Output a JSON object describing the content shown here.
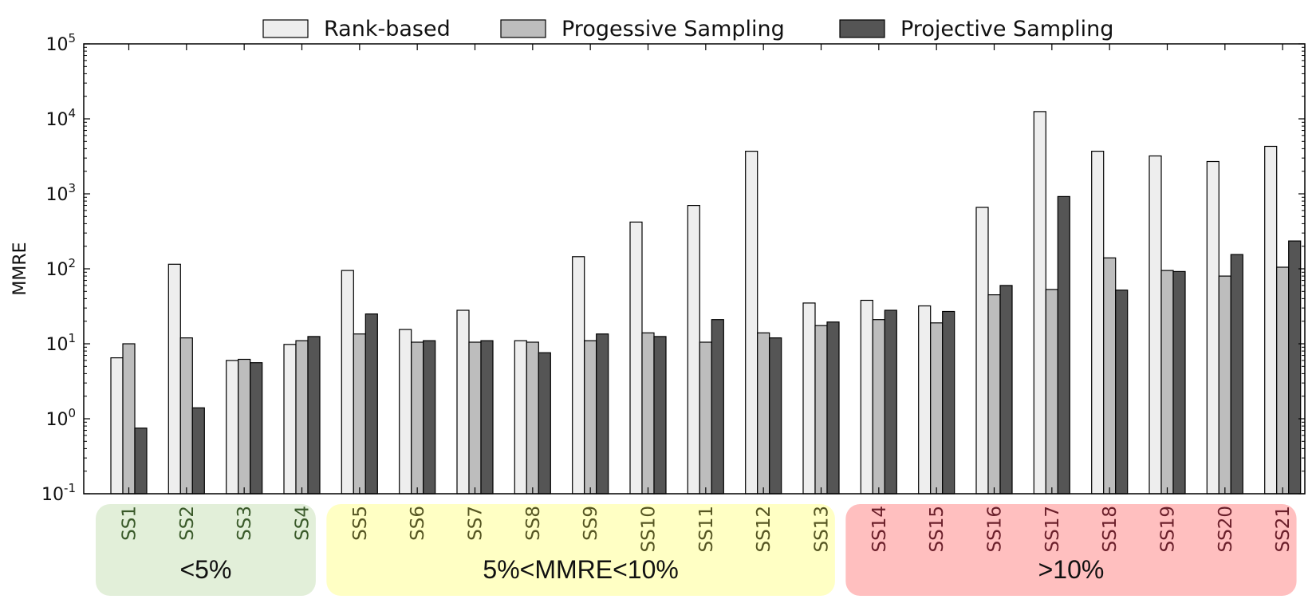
{
  "chart_data": {
    "type": "bar",
    "title": "",
    "xlabel": "",
    "ylabel": "MMRE",
    "yscale": "log",
    "ylim": [
      0.1,
      100000
    ],
    "y_ticks": [
      {
        "value": 0.1,
        "base": "10",
        "exp": "-1"
      },
      {
        "value": 1,
        "base": "10",
        "exp": "0"
      },
      {
        "value": 10,
        "base": "10",
        "exp": "1"
      },
      {
        "value": 100,
        "base": "10",
        "exp": "2"
      },
      {
        "value": 1000,
        "base": "10",
        "exp": "3"
      },
      {
        "value": 10000,
        "base": "10",
        "exp": "4"
      },
      {
        "value": 100000,
        "base": "10",
        "exp": "5"
      }
    ],
    "grid": false,
    "legend_position": "top-center",
    "categories": [
      "SS1",
      "SS2",
      "SS3",
      "SS4",
      "SS5",
      "SS6",
      "SS7",
      "SS8",
      "SS9",
      "SS10",
      "SS11",
      "SS12",
      "SS13",
      "SS14",
      "SS15",
      "SS16",
      "SS17",
      "SS18",
      "SS19",
      "SS20",
      "SS21"
    ],
    "series": [
      {
        "name": "Rank-based",
        "color": "#eeeeee",
        "values": [
          6.5,
          115,
          6.0,
          9.8,
          95,
          15.5,
          28,
          11,
          145,
          420,
          700,
          3700,
          35,
          38,
          32,
          660,
          12500,
          3700,
          3200,
          2700,
          4300
        ]
      },
      {
        "name": "Progessive Sampling",
        "color": "#bdbdbd",
        "values": [
          10,
          12,
          6.2,
          11,
          13.5,
          10.5,
          10.5,
          10.5,
          11,
          14,
          10.5,
          14,
          17.5,
          21,
          19,
          45,
          53,
          140,
          95,
          80,
          105
        ]
      },
      {
        "name": "Projective Sampling",
        "color": "#555555",
        "values": [
          0.75,
          1.4,
          5.6,
          12.5,
          25,
          11,
          11,
          7.6,
          13.5,
          12.5,
          21,
          12,
          19.5,
          28,
          27,
          60,
          920,
          52,
          92,
          155,
          235
        ]
      }
    ],
    "groups": [
      {
        "label": "<5%",
        "categories": [
          "SS1",
          "SS2",
          "SS3",
          "SS4"
        ],
        "color": "#e2efd9",
        "text_color": "#3a5a2a"
      },
      {
        "label": "5%<MMRE<10%",
        "categories": [
          "SS5",
          "SS6",
          "SS7",
          "SS8",
          "SS9",
          "SS10",
          "SS11",
          "SS12",
          "SS13"
        ],
        "color": "#ffffc4",
        "text_color": "#555522"
      },
      {
        "label": ">10%",
        "categories": [
          "SS14",
          "SS15",
          "SS16",
          "SS17",
          "SS18",
          "SS19",
          "SS20",
          "SS21"
        ],
        "color": "#ffbfbf",
        "text_color": "#6a1f2a"
      }
    ]
  }
}
